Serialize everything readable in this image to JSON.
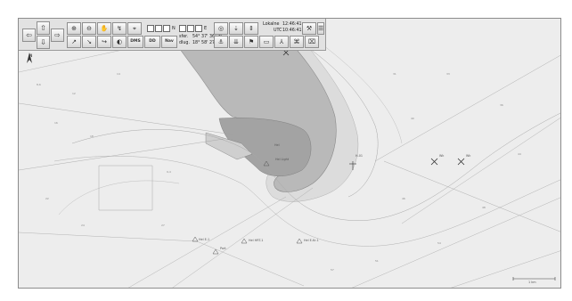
{
  "toolbar": {
    "nav": {
      "center": "✥",
      "up": "⇧",
      "down": "⇩",
      "left": "⇦",
      "right": "⇨"
    },
    "row1_icons": [
      "zoom-in-icon",
      "zoom-out-icon",
      "pan-hand-icon",
      "route-icon",
      "select-icon"
    ],
    "row2_icons": [
      "move-icon",
      "measure-icon",
      "bearing-icon",
      "contrast-icon"
    ],
    "buttons": {
      "dms": "DMS",
      "dd": "DD",
      "nav": "Nav"
    },
    "coords": {
      "n_label": "N",
      "e_label": "E"
    },
    "position": {
      "lat_label": "sfer.",
      "lat_value": "54° 37' 36'' N",
      "lon_label": "dlug.",
      "lon_value": "18° 58' 27'' E"
    },
    "time": {
      "local_label": "Lokalne",
      "local_value": "12:46:41",
      "utc_label": "UTC",
      "utc_value": "10:46:41"
    },
    "right_row1": [
      "target-icon",
      "lighthouse-icon",
      "layers-icon"
    ],
    "right_row2": [
      "anchor-icon",
      "depth-icon",
      "flag-icon",
      "area-icon",
      "vessel-icon",
      "buoy-icon",
      "map-icon"
    ]
  },
  "map": {
    "labels": {
      "hel": "Hel",
      "north_arrow": "N",
      "scale": "1 km",
      "beacon1": "Hel Light",
      "buoy_a": "Hel E-1",
      "buoy_b": "Hel HRT-1",
      "buoy_c": "Hel E-Kr-1",
      "port": "Port",
      "vessel_a": "H-01",
      "vessel_b": "H-02",
      "wreck_a": "Wk",
      "wreck_b": "Wk"
    },
    "depth_marks": [
      "8,6",
      "9,4",
      "12",
      "14",
      "16",
      "18",
      "22",
      "24",
      "27",
      "31",
      "33",
      "36",
      "40",
      "44",
      "46",
      "48",
      "51",
      "54",
      "57"
    ]
  }
}
